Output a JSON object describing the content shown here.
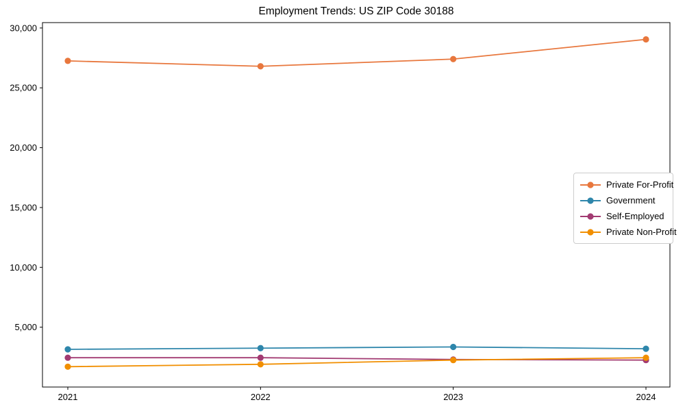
{
  "chart_data": {
    "type": "line",
    "title": "Employment Trends: US ZIP Code 30188",
    "x_labels": [
      "2021",
      "2022",
      "2023",
      "2024"
    ],
    "series": [
      {
        "name": "Private For-Profit",
        "color": "#E8773D",
        "values": [
          27250,
          26800,
          27400,
          29050
        ]
      },
      {
        "name": "Government",
        "color": "#2E86AB",
        "values": [
          3150,
          3250,
          3350,
          3200
        ]
      },
      {
        "name": "Self-Employed",
        "color": "#A23B72",
        "values": [
          2450,
          2450,
          2300,
          2250
        ]
      },
      {
        "name": "Private Non-Profit",
        "color": "#F18F01",
        "values": [
          1700,
          1900,
          2250,
          2450
        ]
      }
    ],
    "yticks": [
      5000,
      10000,
      15000,
      20000,
      25000,
      30000
    ],
    "ytick_labels": [
      "5,000",
      "10,000",
      "15,000",
      "20,000",
      "25,000",
      "30,000"
    ],
    "ylim": [
      0,
      30450
    ],
    "xlabel": "",
    "ylabel": "",
    "grid": false,
    "legend_position": "center right",
    "marker": "circle",
    "frame": "box"
  }
}
